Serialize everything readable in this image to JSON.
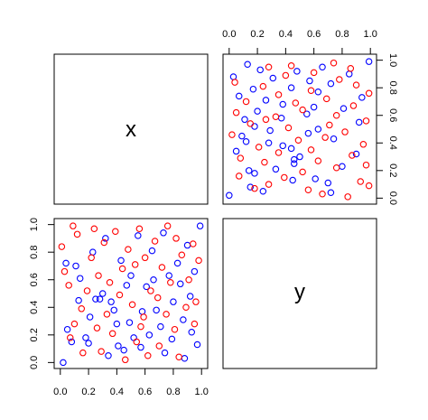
{
  "chart_data": {
    "type": "scatter",
    "variables": [
      "x",
      "y"
    ],
    "axis_range": [
      0,
      1
    ],
    "tick_labels": [
      "0.0",
      "0.2",
      "0.4",
      "0.6",
      "0.8",
      "1.0"
    ],
    "grid": false,
    "legend": "none",
    "colors": {
      "series_1": "#0000ff",
      "series_2": "#ff0000"
    },
    "points": [
      {
        "x": 0.02,
        "y": 0.0,
        "g": 1
      },
      {
        "x": 0.05,
        "y": 0.24,
        "g": 1
      },
      {
        "x": 0.04,
        "y": 0.72,
        "g": 1
      },
      {
        "x": 0.08,
        "y": 0.15,
        "g": 1
      },
      {
        "x": 0.11,
        "y": 0.7,
        "g": 1
      },
      {
        "x": 0.13,
        "y": 0.45,
        "g": 1
      },
      {
        "x": 0.14,
        "y": 0.61,
        "g": 1
      },
      {
        "x": 0.18,
        "y": 0.18,
        "g": 1
      },
      {
        "x": 0.2,
        "y": 0.14,
        "g": 1
      },
      {
        "x": 0.21,
        "y": 0.33,
        "g": 1
      },
      {
        "x": 0.23,
        "y": 0.8,
        "g": 1
      },
      {
        "x": 0.25,
        "y": 0.46,
        "g": 1
      },
      {
        "x": 0.28,
        "y": 0.46,
        "g": 1
      },
      {
        "x": 0.3,
        "y": 0.5,
        "g": 1
      },
      {
        "x": 0.32,
        "y": 0.9,
        "g": 1
      },
      {
        "x": 0.34,
        "y": 0.05,
        "g": 1
      },
      {
        "x": 0.36,
        "y": 0.44,
        "g": 1
      },
      {
        "x": 0.38,
        "y": 0.38,
        "g": 1
      },
      {
        "x": 0.4,
        "y": 0.28,
        "g": 1
      },
      {
        "x": 0.41,
        "y": 0.12,
        "g": 1
      },
      {
        "x": 0.43,
        "y": 0.74,
        "g": 1
      },
      {
        "x": 0.45,
        "y": 0.09,
        "g": 1
      },
      {
        "x": 0.47,
        "y": 0.56,
        "g": 1
      },
      {
        "x": 0.49,
        "y": 0.29,
        "g": 1
      },
      {
        "x": 0.5,
        "y": 0.63,
        "g": 1
      },
      {
        "x": 0.52,
        "y": 0.18,
        "g": 1
      },
      {
        "x": 0.55,
        "y": 0.92,
        "g": 1
      },
      {
        "x": 0.57,
        "y": 0.11,
        "g": 1
      },
      {
        "x": 0.58,
        "y": 0.37,
        "g": 1
      },
      {
        "x": 0.61,
        "y": 0.55,
        "g": 1
      },
      {
        "x": 0.63,
        "y": 0.2,
        "g": 1
      },
      {
        "x": 0.65,
        "y": 0.81,
        "g": 1
      },
      {
        "x": 0.66,
        "y": 0.6,
        "g": 1
      },
      {
        "x": 0.68,
        "y": 0.38,
        "g": 1
      },
      {
        "x": 0.71,
        "y": 0.26,
        "g": 1
      },
      {
        "x": 0.73,
        "y": 0.94,
        "g": 1
      },
      {
        "x": 0.74,
        "y": 0.07,
        "g": 1
      },
      {
        "x": 0.77,
        "y": 0.63,
        "g": 1
      },
      {
        "x": 0.79,
        "y": 0.17,
        "g": 1
      },
      {
        "x": 0.8,
        "y": 0.44,
        "g": 1
      },
      {
        "x": 0.83,
        "y": 0.72,
        "g": 1
      },
      {
        "x": 0.85,
        "y": 0.57,
        "g": 1
      },
      {
        "x": 0.87,
        "y": 0.31,
        "g": 1
      },
      {
        "x": 0.88,
        "y": 0.03,
        "g": 1
      },
      {
        "x": 0.9,
        "y": 0.85,
        "g": 1
      },
      {
        "x": 0.92,
        "y": 0.48,
        "g": 1
      },
      {
        "x": 0.93,
        "y": 0.22,
        "g": 1
      },
      {
        "x": 0.95,
        "y": 0.66,
        "g": 1
      },
      {
        "x": 0.97,
        "y": 0.13,
        "g": 1
      },
      {
        "x": 0.99,
        "y": 0.99,
        "g": 1
      },
      {
        "x": 0.01,
        "y": 0.84,
        "g": 2
      },
      {
        "x": 0.03,
        "y": 0.66,
        "g": 2
      },
      {
        "x": 0.06,
        "y": 0.56,
        "g": 2
      },
      {
        "x": 0.07,
        "y": 0.18,
        "g": 2
      },
      {
        "x": 0.09,
        "y": 0.99,
        "g": 2
      },
      {
        "x": 0.1,
        "y": 0.28,
        "g": 2
      },
      {
        "x": 0.12,
        "y": 0.93,
        "g": 2
      },
      {
        "x": 0.15,
        "y": 0.39,
        "g": 2
      },
      {
        "x": 0.16,
        "y": 0.07,
        "g": 2
      },
      {
        "x": 0.19,
        "y": 0.52,
        "g": 2
      },
      {
        "x": 0.22,
        "y": 0.76,
        "g": 2
      },
      {
        "x": 0.24,
        "y": 0.97,
        "g": 2
      },
      {
        "x": 0.26,
        "y": 0.25,
        "g": 2
      },
      {
        "x": 0.27,
        "y": 0.63,
        "g": 2
      },
      {
        "x": 0.29,
        "y": 0.08,
        "g": 2
      },
      {
        "x": 0.31,
        "y": 0.87,
        "g": 2
      },
      {
        "x": 0.33,
        "y": 0.35,
        "g": 2
      },
      {
        "x": 0.35,
        "y": 0.58,
        "g": 2
      },
      {
        "x": 0.37,
        "y": 0.21,
        "g": 2
      },
      {
        "x": 0.39,
        "y": 0.95,
        "g": 2
      },
      {
        "x": 0.42,
        "y": 0.49,
        "g": 2
      },
      {
        "x": 0.44,
        "y": 0.68,
        "g": 2
      },
      {
        "x": 0.46,
        "y": 0.02,
        "g": 2
      },
      {
        "x": 0.48,
        "y": 0.82,
        "g": 2
      },
      {
        "x": 0.51,
        "y": 0.42,
        "g": 2
      },
      {
        "x": 0.53,
        "y": 0.71,
        "g": 2
      },
      {
        "x": 0.54,
        "y": 0.15,
        "g": 2
      },
      {
        "x": 0.56,
        "y": 0.97,
        "g": 2
      },
      {
        "x": 0.59,
        "y": 0.33,
        "g": 2
      },
      {
        "x": 0.6,
        "y": 0.76,
        "g": 2
      },
      {
        "x": 0.62,
        "y": 0.05,
        "g": 2
      },
      {
        "x": 0.64,
        "y": 0.52,
        "g": 2
      },
      {
        "x": 0.67,
        "y": 0.88,
        "g": 2
      },
      {
        "x": 0.69,
        "y": 0.47,
        "g": 2
      },
      {
        "x": 0.7,
        "y": 0.12,
        "g": 2
      },
      {
        "x": 0.72,
        "y": 0.69,
        "g": 2
      },
      {
        "x": 0.75,
        "y": 0.35,
        "g": 2
      },
      {
        "x": 0.76,
        "y": 0.99,
        "g": 2
      },
      {
        "x": 0.78,
        "y": 0.58,
        "g": 2
      },
      {
        "x": 0.81,
        "y": 0.24,
        "g": 2
      },
      {
        "x": 0.82,
        "y": 0.9,
        "g": 2
      },
      {
        "x": 0.84,
        "y": 0.04,
        "g": 2
      },
      {
        "x": 0.86,
        "y": 0.78,
        "g": 2
      },
      {
        "x": 0.89,
        "y": 0.4,
        "g": 2
      },
      {
        "x": 0.91,
        "y": 0.6,
        "g": 2
      },
      {
        "x": 0.94,
        "y": 0.86,
        "g": 2
      },
      {
        "x": 0.95,
        "y": 0.28,
        "g": 2
      },
      {
        "x": 0.96,
        "y": 0.44,
        "g": 2
      },
      {
        "x": 0.98,
        "y": 0.74,
        "g": 2
      },
      {
        "x": 0.57,
        "y": 0.26,
        "g": 2
      }
    ]
  }
}
